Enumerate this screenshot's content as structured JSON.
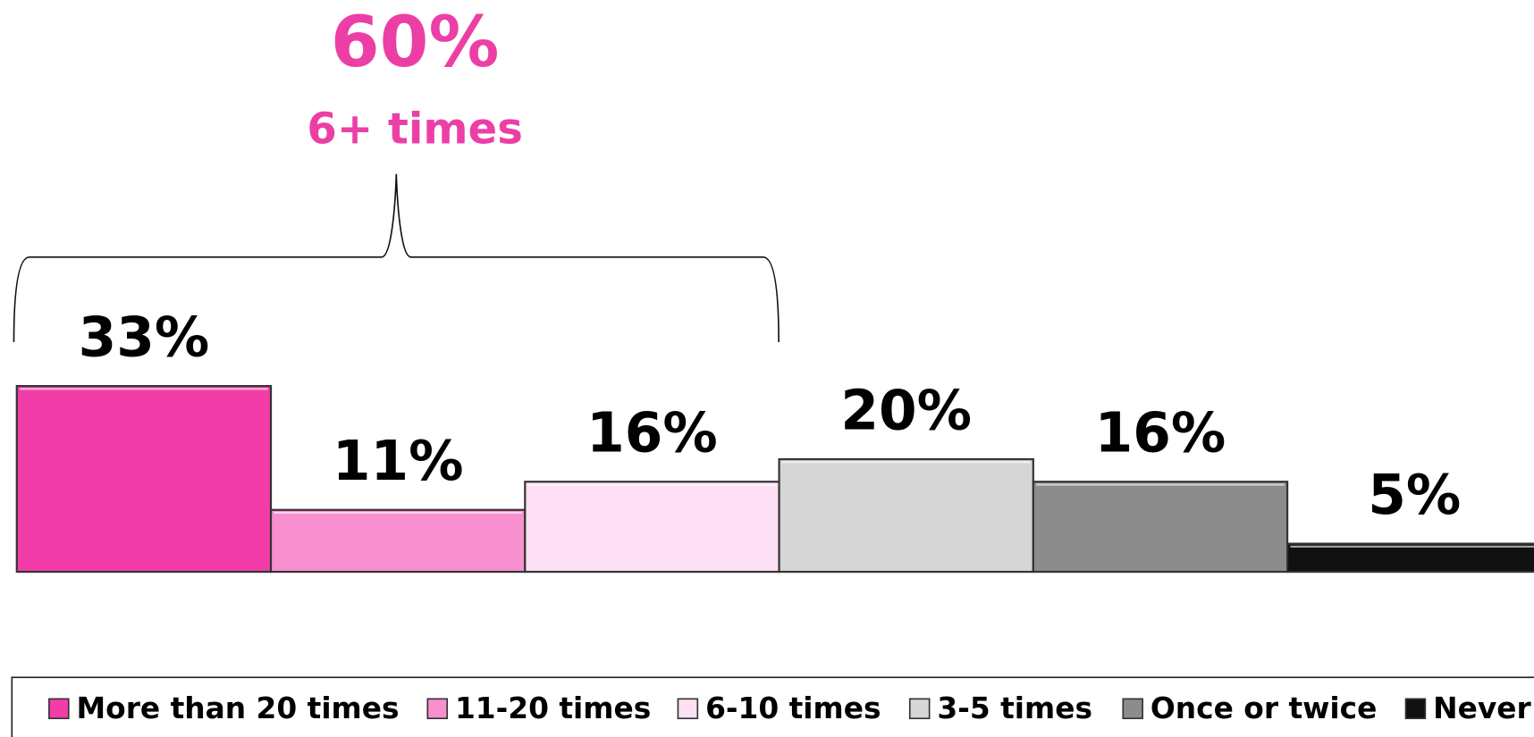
{
  "chart_data": {
    "type": "bar",
    "categories": [
      "More than 20 times",
      "11-20 times",
      "6-10 times",
      "3-5 times",
      "Once or twice",
      "Never"
    ],
    "values": [
      33,
      11,
      16,
      20,
      16,
      5
    ],
    "value_labels": [
      "33%",
      "11%",
      "16%",
      "20%",
      "16%",
      "5%"
    ],
    "colors": [
      "#f23da8",
      "#f88fcf",
      "#fde0f3",
      "#d6d6d6",
      "#8c8c8c",
      "#111111"
    ],
    "annotations": [
      {
        "text": "60%"
      },
      {
        "text": "6+ times"
      }
    ],
    "legend": "bottom"
  }
}
